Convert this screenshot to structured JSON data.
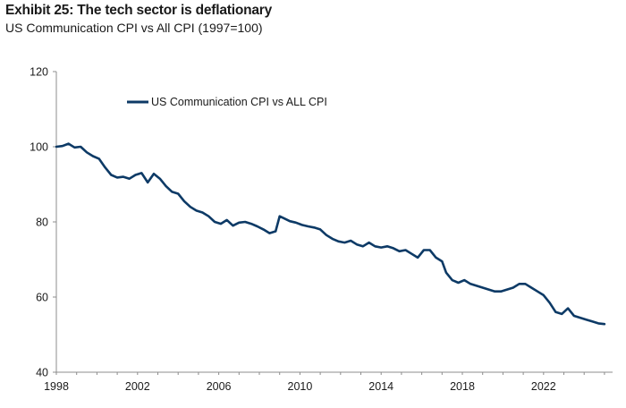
{
  "header": {
    "title": "Exhibit 25: The tech sector is deflationary",
    "subtitle": "US Communication CPI vs All CPI (1997=100)"
  },
  "colors": {
    "series": "#0d3a66",
    "axis": "#8c8c8c"
  },
  "chart_data": {
    "type": "line",
    "title": "Exhibit 25: The tech sector is deflationary",
    "subtitle": "US Communication CPI vs All CPI (1997=100)",
    "xlabel": "",
    "ylabel": "",
    "xlim": [
      1998,
      2025.4
    ],
    "ylim": [
      40,
      120
    ],
    "x_ticks": [
      1998,
      2002,
      2006,
      2010,
      2014,
      2018,
      2022
    ],
    "y_ticks": [
      40,
      60,
      80,
      100,
      120
    ],
    "legend": {
      "placement": "top-left",
      "entries": [
        "US Communication CPI vs ALL CPI"
      ]
    },
    "series": [
      {
        "name": "US Communication CPI vs ALL CPI",
        "x": [
          1998.0,
          1998.3,
          1998.6,
          1998.9,
          1999.2,
          1999.5,
          1999.8,
          2000.1,
          2000.4,
          2000.7,
          2001.0,
          2001.3,
          2001.6,
          2001.9,
          2002.2,
          2002.5,
          2002.8,
          2003.1,
          2003.4,
          2003.7,
          2004.0,
          2004.3,
          2004.6,
          2004.9,
          2005.2,
          2005.5,
          2005.8,
          2006.1,
          2006.4,
          2006.7,
          2007.0,
          2007.3,
          2007.6,
          2007.9,
          2008.2,
          2008.5,
          2008.8,
          2009.0,
          2009.2,
          2009.5,
          2009.8,
          2010.1,
          2010.4,
          2010.7,
          2011.0,
          2011.3,
          2011.6,
          2011.9,
          2012.2,
          2012.5,
          2012.8,
          2013.1,
          2013.4,
          2013.7,
          2014.0,
          2014.3,
          2014.6,
          2014.9,
          2015.2,
          2015.5,
          2015.8,
          2016.1,
          2016.4,
          2016.7,
          2017.0,
          2017.2,
          2017.5,
          2017.8,
          2018.1,
          2018.4,
          2018.7,
          2019.0,
          2019.3,
          2019.6,
          2019.9,
          2020.2,
          2020.5,
          2020.8,
          2021.1,
          2021.4,
          2021.7,
          2022.0,
          2022.3,
          2022.6,
          2022.9,
          2023.2,
          2023.5,
          2023.8,
          2024.1,
          2024.4,
          2024.7,
          2025.0
        ],
        "values": [
          100.0,
          100.2,
          100.8,
          99.8,
          100.0,
          98.5,
          97.5,
          96.8,
          94.5,
          92.5,
          91.8,
          92.0,
          91.5,
          92.5,
          93.0,
          90.5,
          92.8,
          91.5,
          89.5,
          88.0,
          87.5,
          85.5,
          84.0,
          83.0,
          82.5,
          81.5,
          80.0,
          79.5,
          80.5,
          79.0,
          79.8,
          80.0,
          79.5,
          78.8,
          78.0,
          77.0,
          77.5,
          81.5,
          81.0,
          80.2,
          79.8,
          79.2,
          78.8,
          78.5,
          78.0,
          76.5,
          75.5,
          74.8,
          74.5,
          75.0,
          74.0,
          73.5,
          74.5,
          73.5,
          73.2,
          73.5,
          73.0,
          72.2,
          72.5,
          71.5,
          70.5,
          72.5,
          72.5,
          70.5,
          69.5,
          66.5,
          64.5,
          63.8,
          64.5,
          63.5,
          63.0,
          62.5,
          62.0,
          61.5,
          61.5,
          62.0,
          62.5,
          63.5,
          63.5,
          62.5,
          61.5,
          60.5,
          58.5,
          56.0,
          55.5,
          57.0,
          55.0,
          54.5,
          54.0,
          53.5,
          53.0,
          52.8
        ]
      }
    ]
  }
}
